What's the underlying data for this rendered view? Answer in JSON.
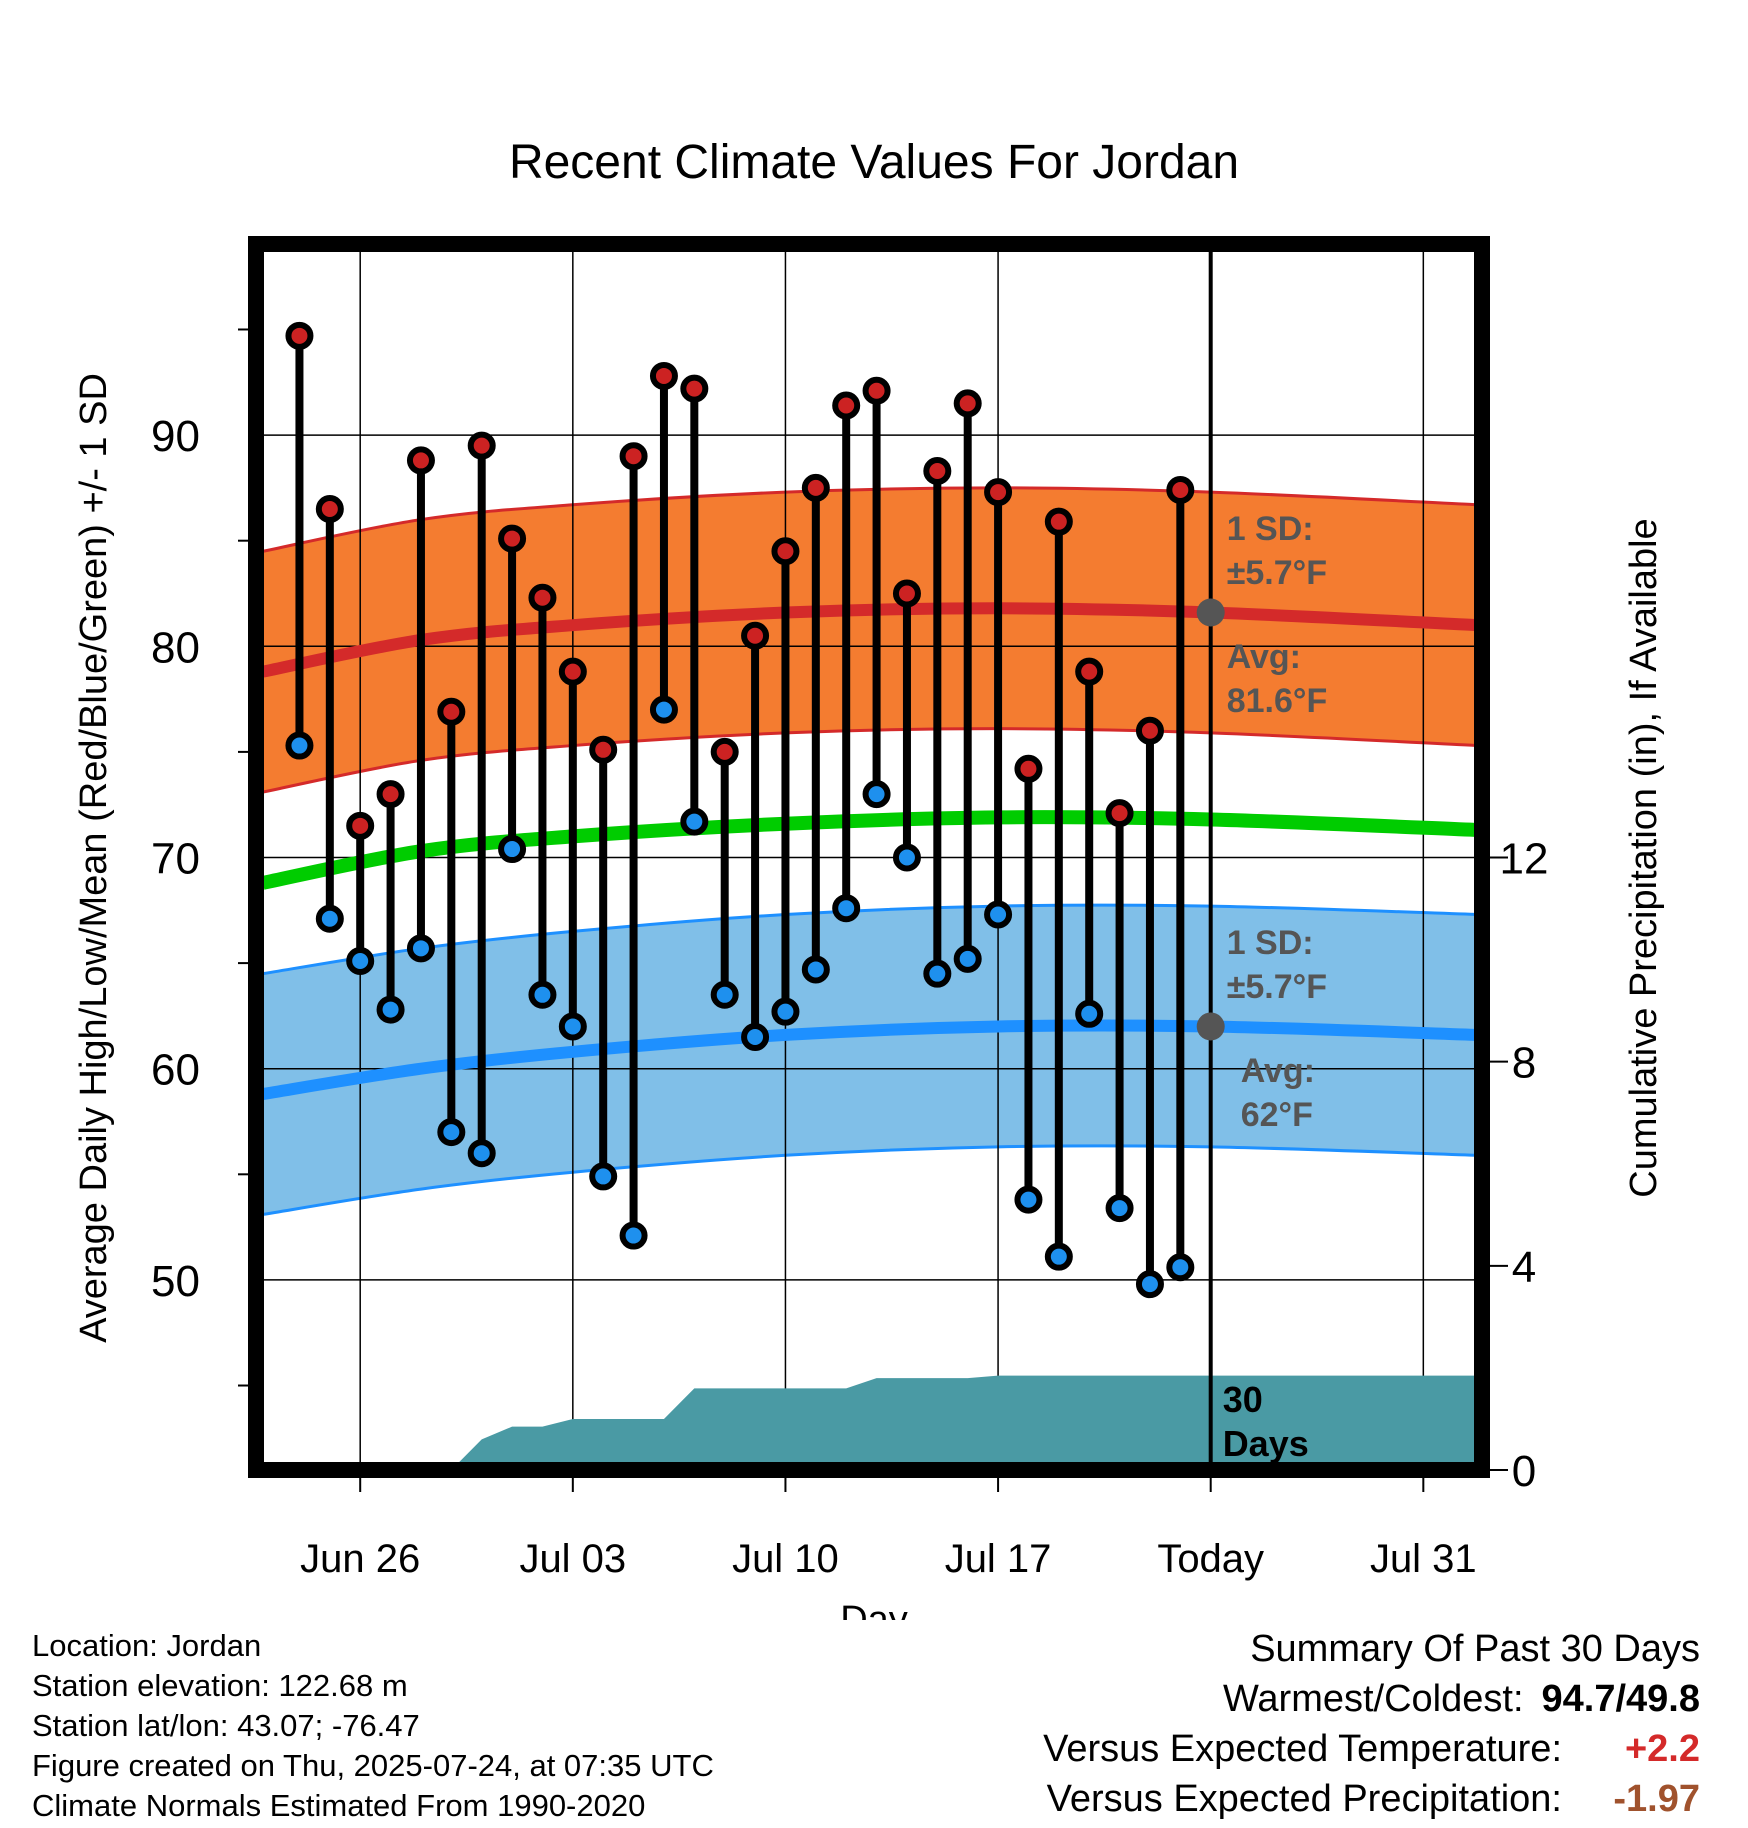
{
  "chart_data": {
    "type": "line",
    "title": "Recent Climate Values For Jordan",
    "xlabel": "Day",
    "ylabel_left": "Average Daily High/Low/Mean (Red/Blue/Green) +/- 1 SD",
    "ylabel_right": "Cumulative Precipitation (in), If Available",
    "ylim": [
      41,
      99
    ],
    "y_ticks": [
      50,
      60,
      70,
      80,
      90
    ],
    "precip_ylim": [
      0,
      24
    ],
    "precip_ticks": [
      0,
      4,
      8,
      12
    ],
    "x_ticks": [
      {
        "date": "Jun 26",
        "label": "Jun 26"
      },
      {
        "date": "Jul 03",
        "label": "Jul 03"
      },
      {
        "date": "Jul 10",
        "label": "Jul 10"
      },
      {
        "date": "Jul 17",
        "label": "Jul 17"
      },
      {
        "date": "Jul 24",
        "label": "Today"
      },
      {
        "date": "Jul 31",
        "label": "Jul 31"
      }
    ],
    "xlim": [
      "Jun 22.8",
      "Aug 01.8"
    ],
    "days": [
      "Jun 24",
      "Jun 25",
      "Jun 26",
      "Jun 27",
      "Jun 28",
      "Jun 29",
      "Jun 30",
      "Jul 01",
      "Jul 02",
      "Jul 03",
      "Jul 04",
      "Jul 05",
      "Jul 06",
      "Jul 07",
      "Jul 08",
      "Jul 09",
      "Jul 10",
      "Jul 11",
      "Jul 12",
      "Jul 13",
      "Jul 14",
      "Jul 15",
      "Jul 16",
      "Jul 17",
      "Jul 18",
      "Jul 19",
      "Jul 20",
      "Jul 21",
      "Jul 22",
      "Jul 23"
    ],
    "highs": [
      94.7,
      86.5,
      71.5,
      73.0,
      88.8,
      76.9,
      89.5,
      85.1,
      82.3,
      78.8,
      75.1,
      89.0,
      92.8,
      92.2,
      75.0,
      80.5,
      84.5,
      87.5,
      91.4,
      92.1,
      82.5,
      88.3,
      91.5,
      87.3,
      74.2,
      85.9,
      78.8,
      72.1,
      76.0,
      87.4
    ],
    "lows": [
      75.3,
      67.1,
      65.1,
      62.8,
      65.7,
      57.0,
      56.0,
      70.4,
      63.5,
      62.0,
      54.9,
      52.1,
      77.0,
      71.7,
      63.5,
      61.5,
      62.7,
      64.7,
      67.6,
      73.0,
      70.0,
      64.5,
      65.2,
      67.3,
      53.8,
      51.1,
      62.6,
      53.4,
      49.8,
      50.6
    ],
    "normals": {
      "x": [
        "Jun 22.8",
        "Jun 28",
        "Jul 03",
        "Jul 10",
        "Jul 17",
        "Jul 24",
        "Aug 01.8"
      ],
      "high_mean": [
        78.8,
        80.3,
        81.0,
        81.6,
        81.8,
        81.6,
        81.0
      ],
      "high_sd": 5.7,
      "low_mean": [
        58.8,
        60.0,
        60.8,
        61.6,
        62.0,
        62.0,
        61.6
      ],
      "low_sd": 5.7,
      "mean": [
        68.8,
        70.3,
        71.0,
        71.6,
        71.9,
        71.8,
        71.3
      ]
    },
    "precipitation": {
      "x": [
        "Jun 22.8",
        "Jun 29",
        "Jun 30",
        "Jul 01",
        "Jul 02",
        "Jul 03",
        "Jul 04",
        "Jul 05",
        "Jul 06",
        "Jul 07",
        "Jul 08",
        "Jul 09",
        "Jul 10",
        "Jul 11",
        "Jul 12",
        "Jul 13",
        "Jul 14",
        "Jul 15",
        "Jul 16",
        "Jul 17",
        "Jul 18",
        "Jul 19",
        "Aug 01.8"
      ],
      "cumulative": [
        0,
        0,
        0.6,
        0.85,
        0.85,
        1.0,
        1.0,
        1.0,
        1.0,
        1.6,
        1.6,
        1.6,
        1.6,
        1.6,
        1.6,
        1.8,
        1.8,
        1.8,
        1.8,
        1.85,
        1.85,
        1.85,
        1.85
      ]
    },
    "annotations": {
      "high_sd_label": [
        "1 SD:",
        "±5.7°F"
      ],
      "high_avg_label": [
        "Avg:",
        "81.6°F"
      ],
      "low_sd_label": [
        "1 SD:",
        "±5.7°F"
      ],
      "low_avg_label": [
        "Avg:",
        "62°F"
      ],
      "precip_window_label": [
        "30",
        "Days"
      ]
    },
    "colors": {
      "high_band": "#f47c30",
      "high_line": "#d42a2a",
      "low_band": "#80bfe8",
      "low_line": "#1e90ff",
      "mean_line": "#00cc00",
      "precip_fill": "#4a9aa4",
      "high_dot": "#cc2222",
      "low_dot": "#1e90ee",
      "annotation_text": "#555555"
    }
  },
  "footer_left": {
    "location": "Location: Jordan",
    "elevation": "Station elevation: 122.68 m",
    "latlon": "Station lat/lon: 43.07; -76.47",
    "created": "Figure created on Thu, 2025-07-24, at 07:35 UTC",
    "normals": "Climate Normals Estimated From 1990-2020"
  },
  "summary": {
    "title": "Summary Of Past 30 Days",
    "warmest_coldest_label": "Warmest/Coldest:",
    "warmest_coldest_value": "94.7/49.8",
    "temp_label": "Versus Expected Temperature:",
    "temp_value": "+2.2",
    "temp_color": "#d42a2a",
    "precip_label": "Versus Expected Precipitation:",
    "precip_value": "-1.97",
    "precip_color": "#a0522d"
  }
}
